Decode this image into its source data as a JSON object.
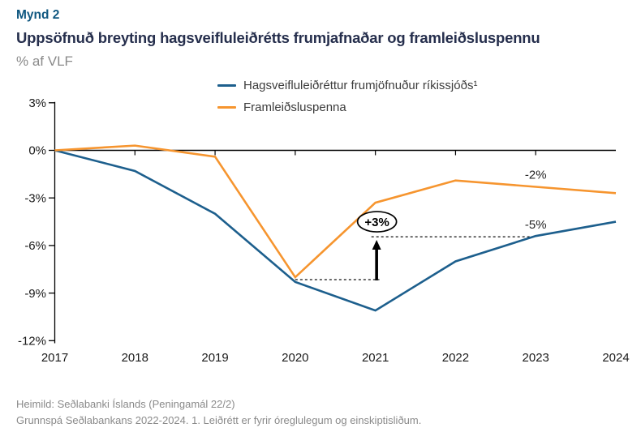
{
  "figure_label": "Mynd 2",
  "title": "Uppsöfnuð breyting hagsveifluleiðrétts frumjafnaðar og framleiðsluspennu",
  "subtitle": "% af VLF",
  "colors": {
    "figure_label": "#0F5780",
    "title": "#262F4D",
    "subtitle": "#8A8A8A",
    "axis": "#000000",
    "tick_text": "#1A1A1A",
    "legend_text": "#3C3C3C",
    "annotation_text": "#262626",
    "footer_text": "#8A8A8A",
    "series_blue": "#1D5F8D",
    "series_orange": "#F6952F"
  },
  "chart_data": {
    "type": "line",
    "title": "Uppsöfnuð breyting hagsveifluleiðrétts frumjafnaðar og framleiðsluspennu",
    "ylabel": "% af VLF",
    "categories": [
      2017,
      2018,
      2019,
      2020,
      2021,
      2022,
      2023,
      2024
    ],
    "series": [
      {
        "name": "Hagsveifluleiðréttur frumjöfnuður ríkissjóðs¹",
        "color": "#1D5F8D",
        "values": [
          0,
          -1.3,
          -4.0,
          -8.3,
          -10.1,
          -7.0,
          -5.4,
          -4.5
        ]
      },
      {
        "name": "Framleiðsluspenna",
        "color": "#F6952F",
        "values": [
          0,
          0.3,
          -0.4,
          -8.0,
          -3.3,
          -1.9,
          -2.3,
          -2.7
        ]
      }
    ],
    "ylim": [
      -12,
      3
    ],
    "yticks": [
      3,
      0,
      -3,
      -6,
      -9,
      -12
    ],
    "ytick_labels": [
      "3%",
      "0%",
      "-3%",
      "-6%",
      "-9%",
      "-12%"
    ],
    "grid": false,
    "legend_position": "top-center",
    "annotations": {
      "bubble": {
        "label": "+3%",
        "x_category": 2021,
        "value": -4.5
      },
      "arrow": {
        "x_category": 2021,
        "from_value": -8.2,
        "to_value": -5.65
      },
      "dotted_lines": [
        {
          "from_category": 2020,
          "to_category": 2021.05,
          "value": -8.15
        },
        {
          "from_category": 2020.95,
          "to_category": 2023,
          "value": -5.45
        }
      ],
      "end_labels": [
        {
          "text": "-2%",
          "x_category": 2023,
          "anchor_value": -2.3
        },
        {
          "text": "-5%",
          "x_category": 2023,
          "anchor_value": -5.45
        }
      ]
    }
  },
  "footer": {
    "line1": "Heimild: Seðlabanki Íslands (Peningamál 22/2)",
    "line2": "Grunnspá Seðlabankans 2022-2024. 1. Leiðrétt er fyrir óreglulegum og einskiptisliðum."
  }
}
